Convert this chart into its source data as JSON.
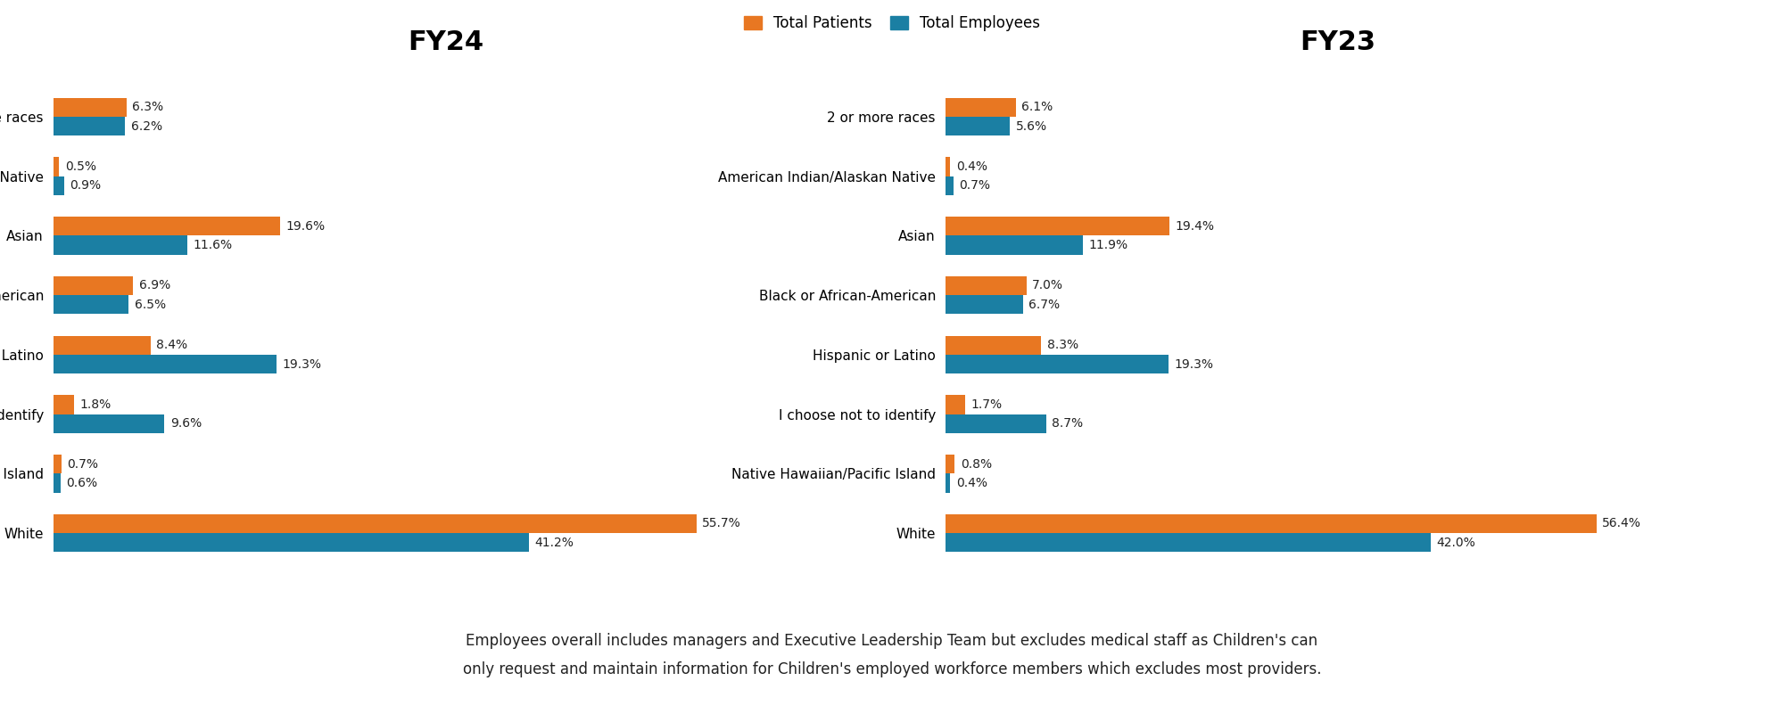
{
  "categories": [
    "2 or more races",
    "American Indian/Alaskan Native",
    "Asian",
    "Black or African-American",
    "Hispanic or Latino",
    "I choose not to identify",
    "Native Hawaiian/Pacific Island",
    "White"
  ],
  "fy24_patients": [
    6.3,
    0.5,
    19.6,
    6.9,
    8.4,
    1.8,
    0.7,
    55.7
  ],
  "fy24_employees": [
    6.2,
    0.9,
    11.6,
    6.5,
    19.3,
    9.6,
    0.6,
    41.2
  ],
  "fy23_patients": [
    6.1,
    0.4,
    19.4,
    7.0,
    8.3,
    1.7,
    0.8,
    56.4
  ],
  "fy23_employees": [
    5.6,
    0.7,
    11.9,
    6.7,
    19.3,
    8.7,
    0.4,
    42.0
  ],
  "fy24_patients_labels": [
    "6.3%",
    "0.5%",
    "19.6%",
    "6.9%",
    "8.4%",
    "1.8%",
    "0.7%",
    "55.7%"
  ],
  "fy24_employees_labels": [
    "6.2%",
    "0.9%",
    "11.6%",
    "6.5%",
    "19.3%",
    "9.6%",
    "0.6%",
    "41.2%"
  ],
  "fy23_patients_labels": [
    "6.1%",
    "0.4%",
    "19.4%",
    "7.0%",
    "8.3%",
    "1.7%",
    "0.8%",
    "56.4%"
  ],
  "fy23_employees_labels": [
    "5.6%",
    "0.7%",
    "11.9%",
    "6.7%",
    "19.3%",
    "8.7%",
    "0.4%",
    "42.0%"
  ],
  "patient_color": "#E87722",
  "employee_color": "#1B7FA3",
  "title_fy24": "FY24",
  "title_fy23": "FY23",
  "legend_patients": "Total Patients",
  "legend_employees": "Total Employees",
  "footnote_line1": "Employees overall includes managers and Executive Leadership Team but excludes medical staff as Children's can",
  "footnote_line2": "only request and maintain information for Children's employed workforce members which excludes most providers.",
  "bg_color": "#ffffff",
  "footnote_bg": "#eeeeee",
  "bar_height": 0.32,
  "xlim": [
    0,
    68
  ],
  "label_fontsize": 10,
  "category_fontsize": 11,
  "title_fontsize": 22
}
